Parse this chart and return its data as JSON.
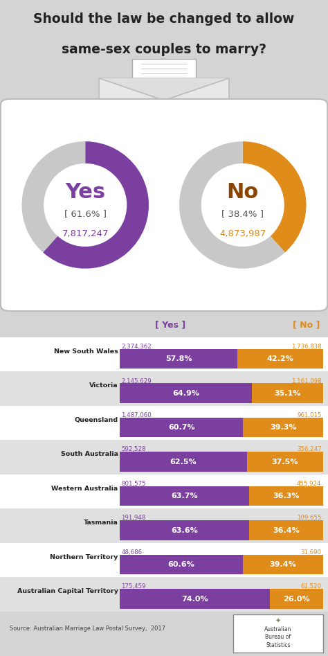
{
  "title_line1": "Should the law be changed to allow",
  "title_line2": "same-sex couples to marry?",
  "bg_color": "#d4d4d4",
  "panel_bg": "#ffffff",
  "yes_color": "#7b3fa0",
  "no_color": "#e08c1a",
  "no_text_color": "#8B4500",
  "gray_donut": "#c8c8c8",
  "yes_pct": 61.6,
  "no_pct": 38.4,
  "yes_votes": "7,817,247",
  "no_votes": "4,873,987",
  "header_yes": "[ Yes ]",
  "header_no": "[ No ]",
  "states": [
    "New South Wales",
    "Victoria",
    "Queensland",
    "South Australia",
    "Western Australia",
    "Tasmania",
    "Northern Territory",
    "Australian Capital Territory"
  ],
  "yes_counts": [
    "2,374,362",
    "2,145,629",
    "1,487,060",
    "592,528",
    "801,575",
    "191,948",
    "48,686",
    "175,459"
  ],
  "no_counts": [
    "1,736,838",
    "1,161,098",
    "961,015",
    "356,247",
    "455,924",
    "109,655",
    "31,690",
    "61,520"
  ],
  "yes_pcts": [
    57.8,
    64.9,
    60.7,
    62.5,
    63.7,
    63.6,
    60.6,
    74.0
  ],
  "no_pcts": [
    42.2,
    35.1,
    39.3,
    37.5,
    36.3,
    36.4,
    39.4,
    26.0
  ],
  "source": "Source: Australian Marriage Law Postal Survey,  2017",
  "row_colors": [
    "#ffffff",
    "#e0e0e0"
  ]
}
